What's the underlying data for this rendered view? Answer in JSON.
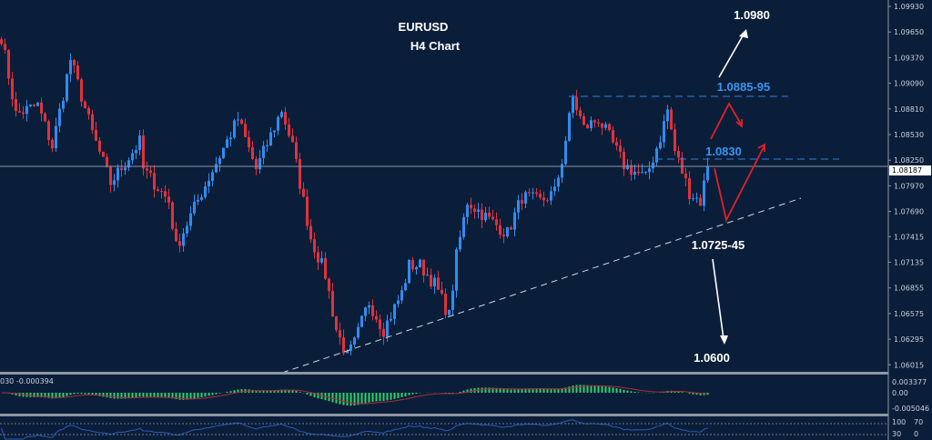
{
  "chart_data": {
    "type": "candlestick",
    "title": "EURUSD",
    "subtitle": "H4 Chart",
    "xlabel": "",
    "ylabel": "",
    "ylim": [
      1.0588,
      1.1003
    ],
    "y_ticks": [
      "1.09930",
      "1.09650",
      "1.09370",
      "1.09090",
      "1.08810",
      "1.08530",
      "1.08250",
      "1.07970",
      "1.07690",
      "1.07415",
      "1.07135",
      "1.06855",
      "1.06575",
      "1.06295",
      "1.06015"
    ],
    "current_price": "1.08187",
    "grid": false,
    "colors": {
      "background": "#0b1e39",
      "up": "#2f8cf0",
      "down": "#e0323c",
      "resistance": "#2f8cf0",
      "arrow_bull": "#ffffff",
      "arrow_bear": "#e0202a",
      "macd_hist": "#2fd06a",
      "macd_signal": "#b02a3a",
      "rsi": "#2a5ab8"
    },
    "series": [
      {
        "x": [
          0,
          4,
          10,
          14,
          19,
          25,
          30,
          38,
          39,
          46,
          48,
          55,
          65,
          70,
          77,
          80,
          85,
          89,
          92,
          95,
          97,
          100,
          101,
          105,
          110,
          112,
          115,
          119,
          123,
          125,
          128,
          134,
          139,
          143,
          148,
          152,
          154,
          157,
          160,
          164,
          167,
          171,
          177,
          181,
          183,
          185,
          189,
          192,
          194
        ],
        "close": [
          1.096,
          1.0875,
          1.0885,
          1.084,
          1.0935,
          1.0855,
          1.08,
          1.0845,
          1.0815,
          1.078,
          1.073,
          1.079,
          1.087,
          1.0815,
          1.088,
          1.084,
          1.074,
          1.07,
          1.064,
          1.061,
          1.0625,
          1.066,
          1.067,
          1.064,
          1.068,
          1.071,
          1.071,
          1.069,
          1.0655,
          1.072,
          1.078,
          1.076,
          1.0745,
          1.0785,
          1.078,
          1.079,
          1.0825,
          1.0893,
          1.086,
          1.087,
          1.085,
          1.082,
          1.0805,
          1.085,
          1.088,
          1.0835,
          1.079,
          1.078,
          1.08187
        ]
      }
    ],
    "annotations": {
      "target_up": "1.0980",
      "resistance": "1.0885-95",
      "pivot": "1.0830",
      "support": "1.0725-45",
      "target_down": "1.0600"
    },
    "macd": {
      "label": "030 -0.000394",
      "ticks": [
        "0.003377",
        "0.00",
        "-0.005046"
      ]
    },
    "rsi": {
      "ticks": [
        "100",
        "70",
        "30",
        "0"
      ]
    }
  }
}
